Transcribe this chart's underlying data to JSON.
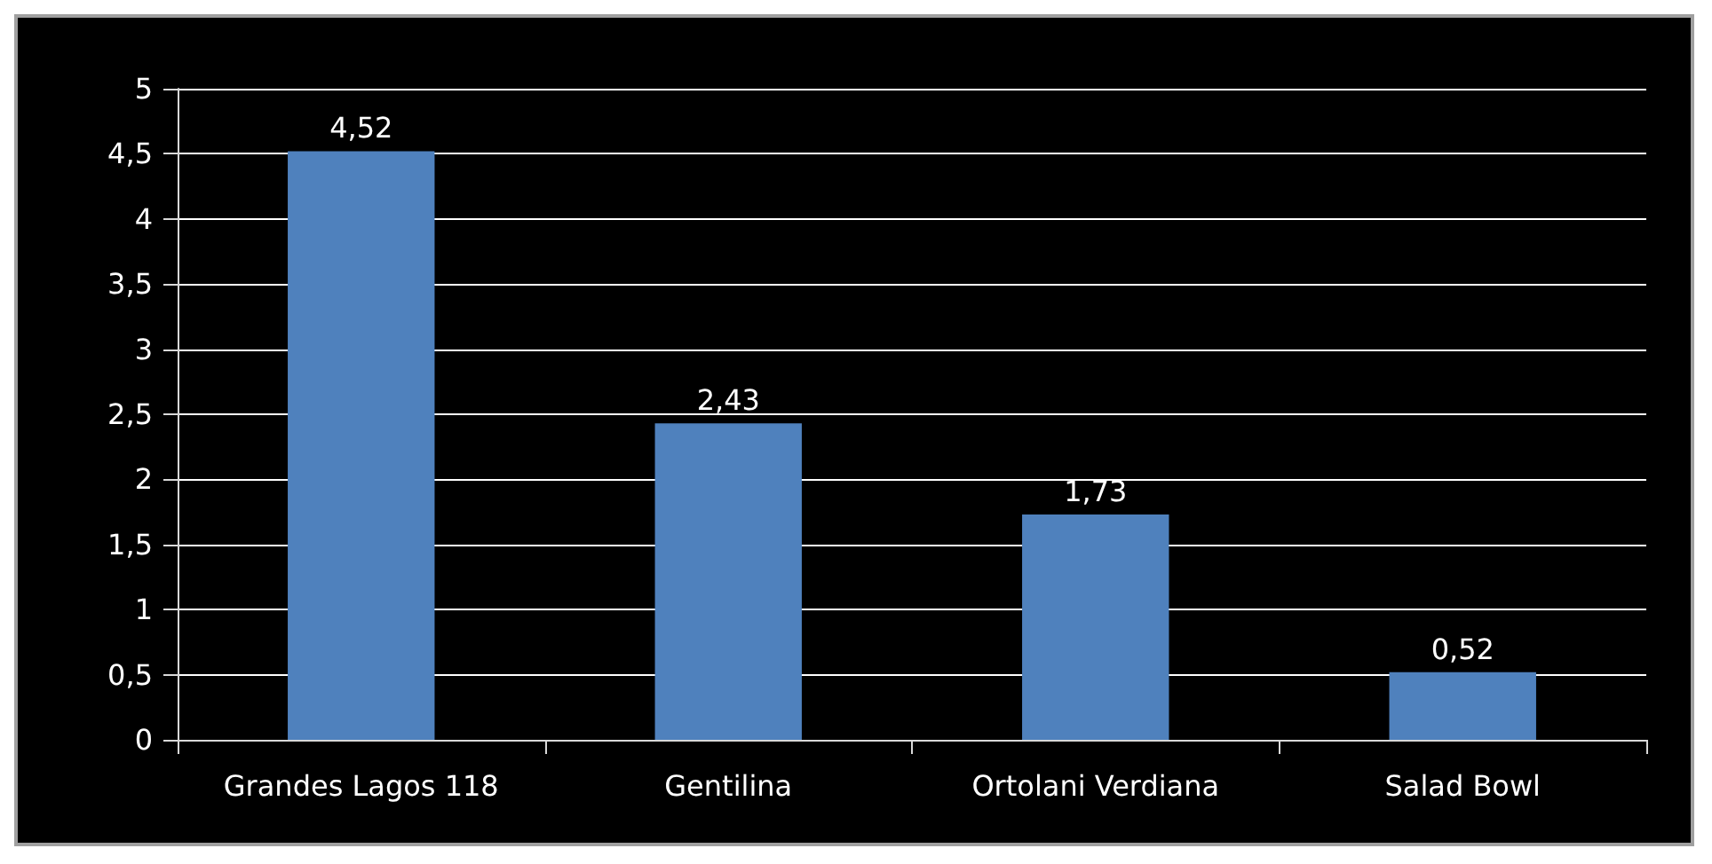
{
  "chart_data": {
    "type": "bar",
    "categories": [
      "Grandes Lagos 118",
      "Gentilina",
      "Ortolani Verdiana",
      "Salad Bowl"
    ],
    "values": [
      4.52,
      2.43,
      1.73,
      0.52
    ],
    "value_labels": [
      "4,52",
      "2,43",
      "1,73",
      "0,52"
    ],
    "color": "#4f81bd",
    "ylim": [
      0,
      5
    ],
    "yticks": [
      0,
      {
        "value": 0.5,
        "label": "0,5"
      },
      1,
      {
        "value": 1.5,
        "label": "1,5"
      },
      2,
      {
        "value": 2.5,
        "label": "2,5"
      },
      3,
      {
        "value": 3.5,
        "label": "3,5"
      },
      4,
      {
        "value": 4.5,
        "label": "4,5"
      },
      5
    ],
    "grid": "y"
  }
}
